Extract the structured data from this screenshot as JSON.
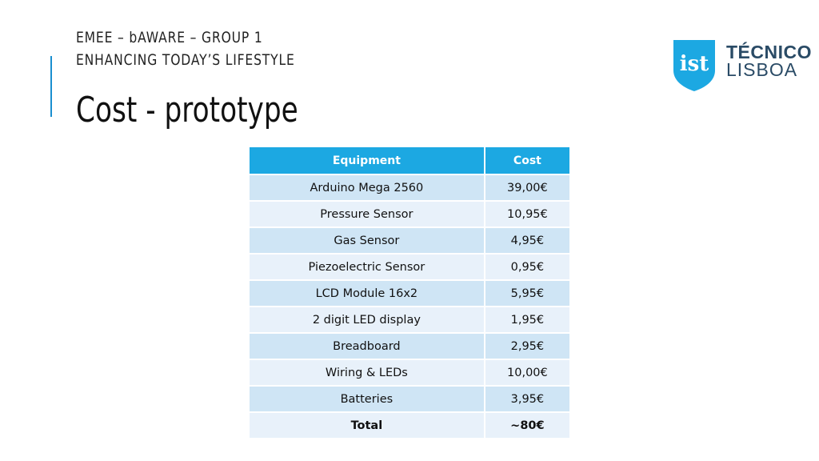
{
  "header": {
    "line1": "EMEE – bAWARE – GROUP 1",
    "line2": "ENHANCING TODAY’S LIFESTYLE"
  },
  "title": "Cost - prototype",
  "logo": {
    "line1": "TÉCNICO",
    "line2": "LISBOA",
    "shield_color": "#1ca8e2"
  },
  "table": {
    "headers": [
      "Equipment",
      "Cost"
    ],
    "rows": [
      {
        "equipment": "Arduino Mega 2560",
        "cost": "39,00€"
      },
      {
        "equipment": "Pressure Sensor",
        "cost": "10,95€"
      },
      {
        "equipment": "Gas Sensor",
        "cost": "4,95€"
      },
      {
        "equipment": "Piezoelectric Sensor",
        "cost": "0,95€"
      },
      {
        "equipment": "LCD Module 16x2",
        "cost": "5,95€"
      },
      {
        "equipment": "2 digit LED display",
        "cost": "1,95€"
      },
      {
        "equipment": "Breadboard",
        "cost": "2,95€"
      },
      {
        "equipment": "Wiring & LEDs",
        "cost": "10,00€"
      },
      {
        "equipment": "Batteries",
        "cost": "3,95€"
      }
    ],
    "total": {
      "label": "Total",
      "cost": "~80€"
    }
  },
  "colors": {
    "accent": "#1a8fd0",
    "header_fill": "#1ca8e2",
    "row_dark": "#cfe5f5",
    "row_light": "#e8f1fa"
  }
}
